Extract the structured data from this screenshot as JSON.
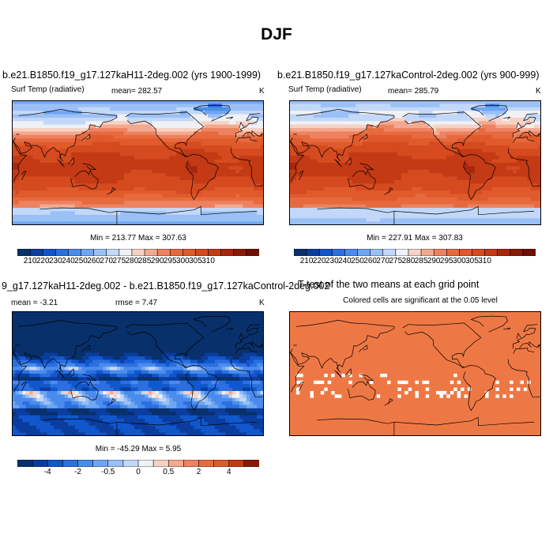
{
  "figure_title": "DJF",
  "colors": {
    "palette_abs": [
      "#08306b",
      "#0a3d9e",
      "#1157cc",
      "#2b6fe0",
      "#4a8ced",
      "#6fa6f2",
      "#9ac0f6",
      "#c3d8f8",
      "#eef1f5",
      "#f7d2c4",
      "#f3a98f",
      "#ee8260",
      "#e76a3e",
      "#e05a2c",
      "#d54a1f",
      "#c33a15",
      "#a8260c",
      "#8a1a06",
      "#6e0f02"
    ],
    "palette_diff": [
      "#08306b",
      "#0a3d9e",
      "#1157cc",
      "#2b6fe0",
      "#4a8ced",
      "#6fa6f2",
      "#9ac0f6",
      "#c3d8f8",
      "#eef1f5",
      "#f7d2c4",
      "#f3a98f",
      "#ee8260",
      "#e76a3e",
      "#e05a2c",
      "#c33a15",
      "#8a1a06"
    ],
    "ttest_fill": "#ee7845"
  },
  "chart_data": [
    {
      "type": "heatmap",
      "panel": "top-left",
      "title": "b.e21.B1850.f19_g17.127kaH11-2deg.002 (yrs 1900-1999)",
      "left_label": "Surf Temp (radiative)",
      "center_label": "mean= 282.57",
      "right_label": "K",
      "stats": "Min = 213.77 Max = 307.63",
      "colorbar_ticks": [
        "210",
        "220",
        "230",
        "240",
        "250",
        "260",
        "270",
        "275",
        "280",
        "285",
        "290",
        "295",
        "300",
        "305",
        "310"
      ]
    },
    {
      "type": "heatmap",
      "panel": "top-right",
      "title": "b.e21.B1850.f19_g17.127kaControl-2deg.002 (yrs 900-999)",
      "left_label": "Surf Temp (radiative)",
      "center_label": "mean= 285.79",
      "right_label": "K",
      "stats": "Min = 227.91 Max = 307.83",
      "colorbar_ticks": [
        "210",
        "220",
        "230",
        "240",
        "250",
        "260",
        "270",
        "275",
        "280",
        "285",
        "290",
        "295",
        "300",
        "305",
        "310"
      ]
    },
    {
      "type": "heatmap",
      "panel": "bottom-left",
      "title": "9_g17.127kaH11-2deg.002 - b.e21.B1850.f19_g17.127kaControl-2deg.002",
      "left_label": "mean =  -3.21",
      "center_label": "rmse =   7.47",
      "right_label": "K",
      "stats": "Min = -45.29 Max =   5.95",
      "colorbar_ticks": [
        "-4",
        "-2",
        "-0.5",
        "0",
        "0.5",
        "2",
        "4"
      ]
    },
    {
      "type": "heatmap",
      "panel": "bottom-right",
      "title": "T-test of the two means at each grid point",
      "subtitle": "Colored cells are significant at the 0.05 level"
    }
  ]
}
